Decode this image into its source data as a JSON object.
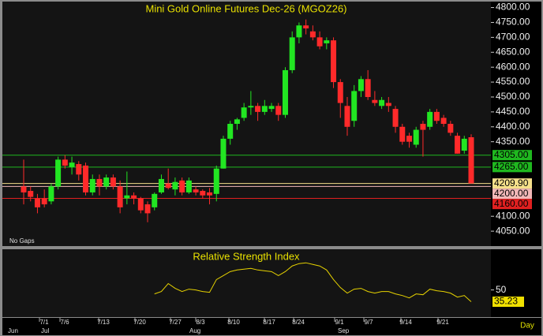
{
  "chart_data": [
    {
      "type": "candlestick",
      "title": "Mini Gold Online Futures Dec-26 (MGOZ26)",
      "note": "No Gaps",
      "open": [
        4200,
        4185,
        4160,
        4160,
        4150,
        4200,
        4290,
        4265,
        4275,
        4270,
        4180,
        4225,
        4200,
        4230,
        4200,
        4160,
        4170,
        4160,
        4140,
        4130,
        4180,
        4210,
        4190,
        4220,
        4180,
        4190,
        4185,
        4180,
        4175,
        4260,
        4360,
        4410,
        4430,
        4465,
        4470,
        4450,
        4460,
        4470,
        4440,
        4590,
        4700,
        4740,
        4720,
        4700,
        4680,
        4690,
        4550,
        4470,
        4420,
        4520,
        4560,
        4490,
        4470,
        4480,
        4460,
        4400,
        4370,
        4340,
        4410,
        4400,
        4450,
        4430,
        4410,
        4370,
        4320,
        4365
      ],
      "high": [
        4290,
        4200,
        4175,
        4190,
        4210,
        4300,
        4305,
        4300,
        4285,
        4280,
        4240,
        4240,
        4240,
        4240,
        4220,
        4250,
        4180,
        4165,
        4150,
        4180,
        4240,
        4260,
        4230,
        4230,
        4230,
        4200,
        4190,
        4195,
        4270,
        4370,
        4420,
        4430,
        4480,
        4520,
        4480,
        4490,
        4480,
        4480,
        4600,
        4720,
        4750,
        4760,
        4740,
        4720,
        4700,
        4700,
        4560,
        4500,
        4540,
        4570,
        4590,
        4520,
        4500,
        4500,
        4470,
        4410,
        4380,
        4400,
        4420,
        4460,
        4460,
        4440,
        4420,
        4380,
        4370,
        4375
      ],
      "low": [
        4140,
        4150,
        4110,
        4130,
        4140,
        4190,
        4260,
        4240,
        4220,
        4170,
        4170,
        4170,
        4190,
        4190,
        4110,
        4140,
        4140,
        4110,
        4080,
        4120,
        4175,
        4190,
        4170,
        4170,
        4175,
        4170,
        4160,
        4140,
        4150,
        4260,
        4340,
        4390,
        4420,
        4440,
        4420,
        4440,
        4450,
        4420,
        4430,
        4580,
        4680,
        4710,
        4690,
        4660,
        4660,
        4530,
        4430,
        4370,
        4400,
        4500,
        4490,
        4470,
        4460,
        4450,
        4380,
        4340,
        4330,
        4330,
        4300,
        4390,
        4410,
        4400,
        4370,
        4310,
        4310,
        4210
      ],
      "close": [
        4180,
        4165,
        4130,
        4140,
        4200,
        4290,
        4270,
        4280,
        4240,
        4180,
        4225,
        4200,
        4230,
        4200,
        4130,
        4170,
        4160,
        4120,
        4110,
        4175,
        4225,
        4195,
        4215,
        4180,
        4220,
        4180,
        4170,
        4170,
        4260,
        4360,
        4410,
        4425,
        4465,
        4470,
        4450,
        4470,
        4470,
        4440,
        4590,
        4700,
        4740,
        4730,
        4700,
        4670,
        4690,
        4550,
        4480,
        4400,
        4520,
        4560,
        4500,
        4480,
        4490,
        4470,
        4400,
        4350,
        4350,
        4390,
        4390,
        4450,
        4420,
        4410,
        4380,
        4310,
        4360,
        4210
      ],
      "up_color": "#22e622",
      "down_color": "#ff2a2a",
      "ylim": [
        4000,
        4820
      ],
      "yticks": [
        {
          "value": 4800,
          "label": "4800.00"
        },
        {
          "value": 4750,
          "label": "4750.00"
        },
        {
          "value": 4700,
          "label": "4700.00"
        },
        {
          "value": 4650,
          "label": "4650.00"
        },
        {
          "value": 4600,
          "label": "4600.00"
        },
        {
          "value": 4550,
          "label": "4550.00"
        },
        {
          "value": 4500,
          "label": "4500.00"
        },
        {
          "value": 4450,
          "label": "4450.00"
        },
        {
          "value": 4400,
          "label": "4400.00"
        },
        {
          "value": 4350,
          "label": "4350.00"
        },
        {
          "value": 4100,
          "label": "4100.00"
        },
        {
          "value": 4050,
          "label": "4050.00"
        }
      ],
      "levels": [
        {
          "value": 4305,
          "label": "4305.00",
          "color": "#1fb81f"
        },
        {
          "value": 4265,
          "label": "4265.00",
          "color": "#1fb81f"
        },
        {
          "value": 4209.9,
          "label": "4209.90",
          "color": "#f5e08a"
        },
        {
          "value": 4200,
          "label": "4200.00",
          "color": "#f2b8b8"
        },
        {
          "value": 4160,
          "label": "4160.00",
          "color": "#e02020"
        }
      ]
    },
    {
      "type": "line",
      "title": "Relative Strength Index",
      "values": [
        null,
        null,
        null,
        null,
        null,
        null,
        null,
        null,
        null,
        null,
        null,
        null,
        null,
        null,
        null,
        null,
        null,
        null,
        null,
        45,
        48,
        58,
        52,
        48,
        51,
        50,
        48,
        47,
        63,
        68,
        73,
        75,
        76,
        77,
        75,
        74,
        73,
        68,
        73,
        80,
        83,
        84,
        82,
        80,
        75,
        63,
        53,
        46,
        51,
        52,
        48,
        46,
        48,
        48,
        45,
        43,
        40,
        45,
        44,
        51,
        49,
        48,
        46,
        41,
        43,
        35.23
      ],
      "color": "#e6d200",
      "ylim": [
        16,
        101
      ],
      "yticks": [
        50
      ],
      "last_label": "35.23",
      "date_labels": [
        "7/1",
        "7/6",
        "7/13",
        "7/20",
        "7/27",
        "8/3",
        "8/10",
        "8/17",
        "8/24",
        "9/1",
        "9/7",
        "9/14",
        "9/21"
      ],
      "month_labels": [
        "Jun",
        "Jul",
        "Aug",
        "Sep"
      ],
      "period": "Day"
    }
  ]
}
